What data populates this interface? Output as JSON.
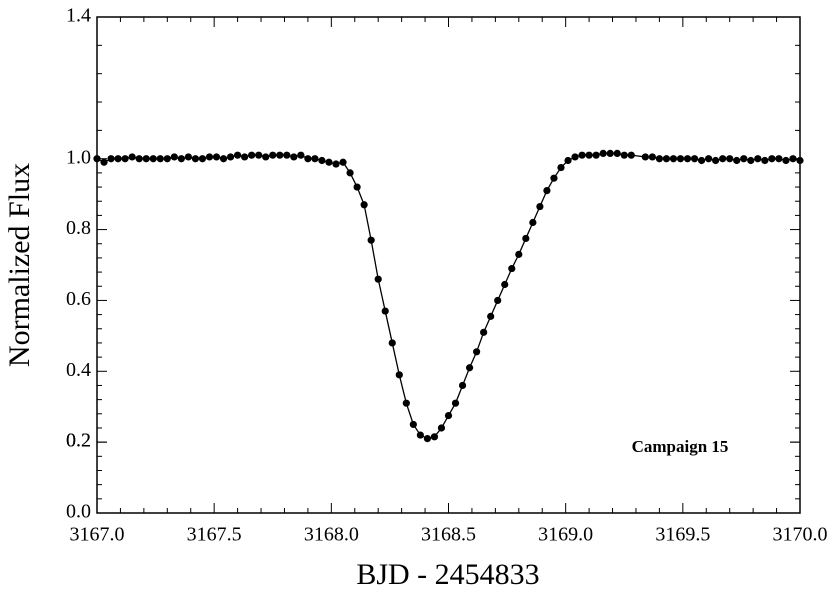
{
  "chart_data": {
    "type": "scatter",
    "connect": true,
    "color": "#000000",
    "xlabel": "BJD - 2454833",
    "ylabel": "Normalized Flux",
    "annotation": "Campaign 15",
    "x": [
      3167.0,
      3167.03,
      3167.06,
      3167.09,
      3167.12,
      3167.15,
      3167.18,
      3167.21,
      3167.24,
      3167.27,
      3167.3,
      3167.33,
      3167.36,
      3167.39,
      3167.42,
      3167.45,
      3167.48,
      3167.51,
      3167.54,
      3167.57,
      3167.6,
      3167.63,
      3167.66,
      3167.69,
      3167.72,
      3167.75,
      3167.78,
      3167.81,
      3167.84,
      3167.87,
      3167.9,
      3167.93,
      3167.96,
      3167.99,
      3168.02,
      3168.05,
      3168.08,
      3168.11,
      3168.14,
      3168.17,
      3168.2,
      3168.23,
      3168.26,
      3168.29,
      3168.32,
      3168.35,
      3168.38,
      3168.41,
      3168.44,
      3168.47,
      3168.5,
      3168.53,
      3168.56,
      3168.59,
      3168.62,
      3168.65,
      3168.68,
      3168.71,
      3168.74,
      3168.77,
      3168.8,
      3168.83,
      3168.86,
      3168.89,
      3168.92,
      3168.95,
      3168.98,
      3169.01,
      3169.04,
      3169.07,
      3169.1,
      3169.13,
      3169.16,
      3169.19,
      3169.22,
      3169.25,
      3169.28,
      3169.34,
      3169.37,
      3169.4,
      3169.43,
      3169.46,
      3169.49,
      3169.52,
      3169.55,
      3169.58,
      3169.61,
      3169.64,
      3169.67,
      3169.7,
      3169.73,
      3169.76,
      3169.79,
      3169.82,
      3169.85,
      3169.88,
      3169.91,
      3169.94,
      3169.97,
      3170.0
    ],
    "values": [
      1.0,
      0.99,
      1.0,
      1.0,
      1.0,
      1.005,
      1.0,
      1.0,
      1.0,
      1.0,
      1.0,
      1.005,
      1.0,
      1.005,
      1.0,
      1.0,
      1.005,
      1.005,
      1.0,
      1.005,
      1.01,
      1.005,
      1.01,
      1.01,
      1.005,
      1.01,
      1.01,
      1.01,
      1.005,
      1.01,
      1.0,
      1.0,
      0.995,
      0.99,
      0.985,
      0.99,
      0.96,
      0.92,
      0.87,
      0.77,
      0.66,
      0.57,
      0.48,
      0.39,
      0.31,
      0.25,
      0.22,
      0.21,
      0.215,
      0.24,
      0.275,
      0.31,
      0.36,
      0.41,
      0.455,
      0.51,
      0.555,
      0.6,
      0.645,
      0.69,
      0.73,
      0.775,
      0.82,
      0.865,
      0.91,
      0.945,
      0.975,
      0.995,
      1.005,
      1.01,
      1.01,
      1.01,
      1.015,
      1.015,
      1.015,
      1.01,
      1.01,
      1.005,
      1.005,
      1.0,
      1.0,
      1.0,
      1.0,
      1.0,
      1.0,
      0.995,
      1.0,
      0.995,
      1.0,
      1.0,
      0.995,
      1.0,
      0.995,
      1.0,
      0.995,
      1.0,
      1.0,
      0.995,
      1.0,
      0.995
    ],
    "xlim": [
      3167.0,
      3170.0
    ],
    "xticks": [
      {
        "value": 3167.0,
        "label": "3167.0"
      },
      {
        "value": 3167.5,
        "label": "3167.5"
      },
      {
        "value": 3168.0,
        "label": "3168.0"
      },
      {
        "value": 3168.5,
        "label": "3168.5"
      },
      {
        "value": 3169.0,
        "label": "3169.0"
      },
      {
        "value": 3169.5,
        "label": "3169.5"
      },
      {
        "value": 3170.0,
        "label": "3170.0"
      }
    ],
    "ylim": [
      0,
      1.4
    ],
    "yticks": [
      {
        "value": 0,
        "label": "0.0"
      },
      0.2,
      0.4,
      0.6,
      0.8,
      {
        "value": 1,
        "label": "1.0"
      },
      0.2,
      1.4
    ],
    "grid": false
  }
}
